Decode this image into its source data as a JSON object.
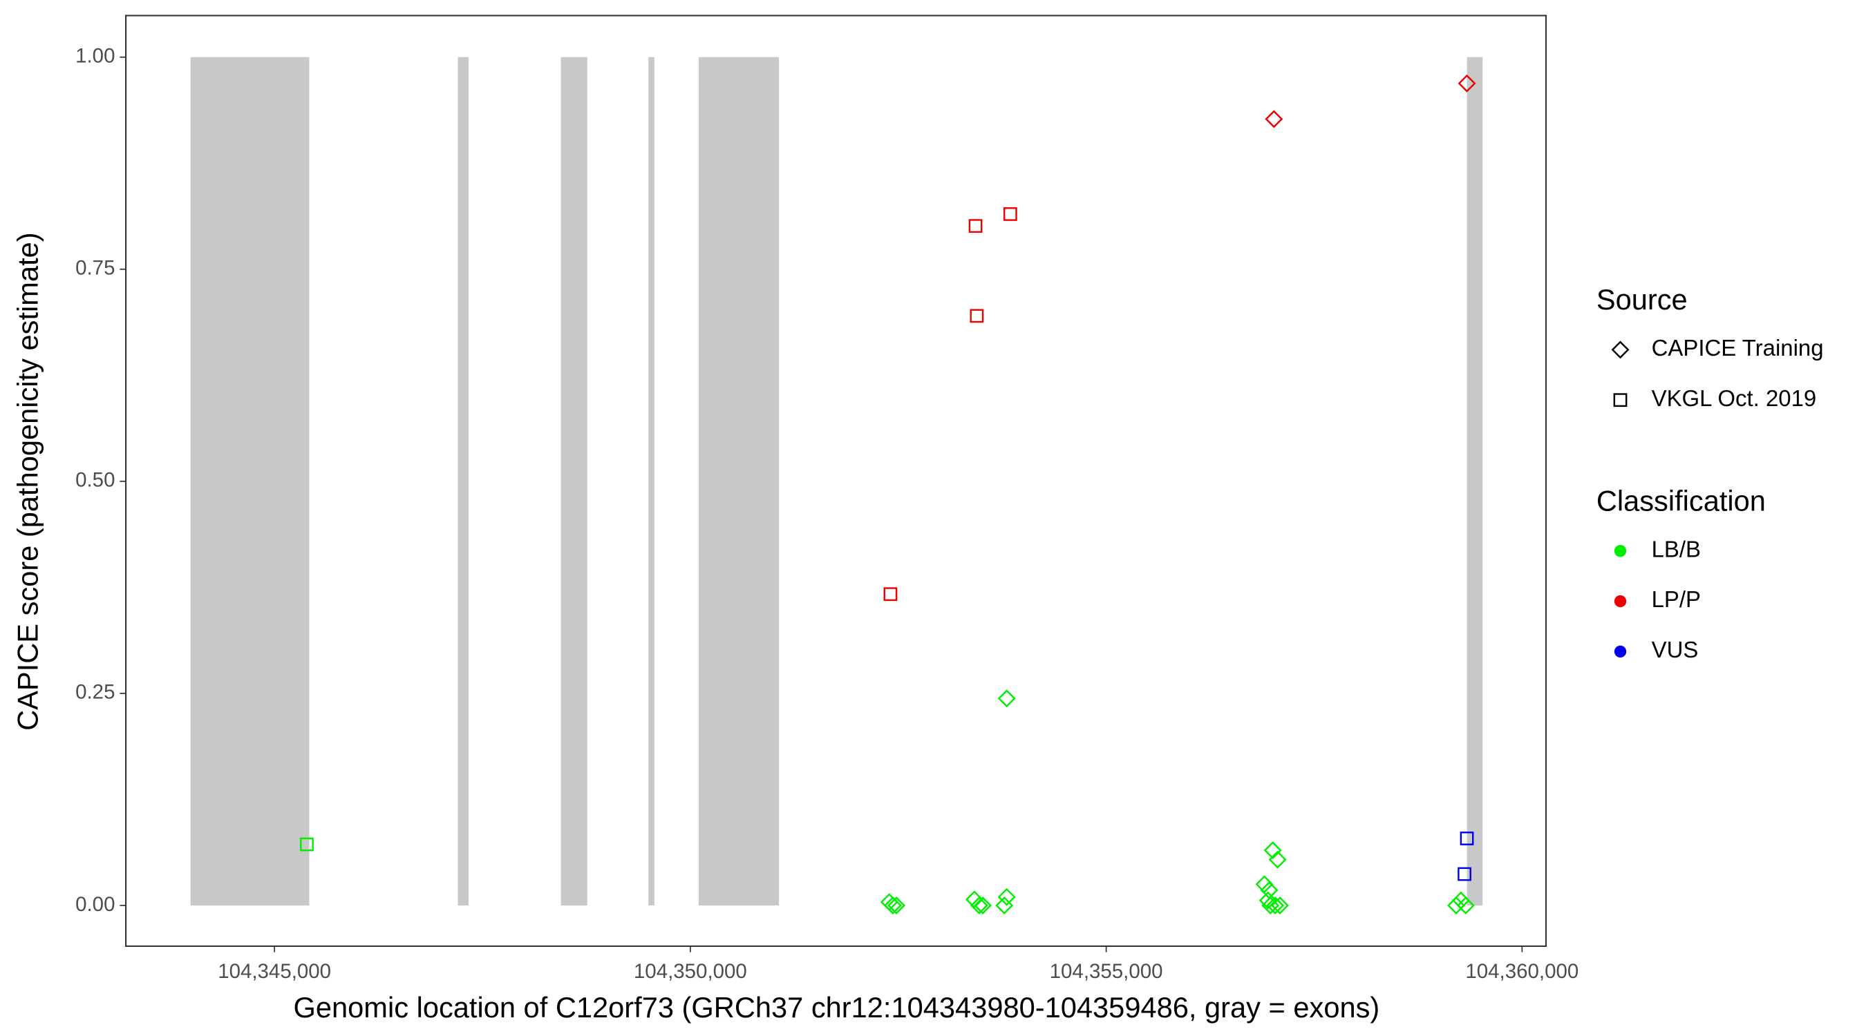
{
  "chart_data": {
    "type": "scatter",
    "x_label": "Genomic location of C12orf73 (GRCh37 chr12:104343980-104359486, gray = exons)",
    "y_label": "CAPICE score (pathogenicity estimate)",
    "xlim": [
      104343213,
      104360288
    ],
    "ylim": [
      -0.048,
      1.049
    ],
    "xticks": [
      {
        "value": 104345000,
        "label": "104,345,000"
      },
      {
        "value": 104350000,
        "label": "104,350,000"
      },
      {
        "value": 104355000,
        "label": "104,355,000"
      },
      {
        "value": 104360000,
        "label": "104,360,000"
      }
    ],
    "yticks": [
      {
        "value": 0,
        "label": "0.00"
      },
      {
        "value": 0.25,
        "label": "0.25"
      },
      {
        "value": 0.5,
        "label": "0.50"
      },
      {
        "value": 0.75,
        "label": "0.75"
      },
      {
        "value": 1,
        "label": "1.00"
      }
    ],
    "exon_color": "#c8c8c8",
    "exons": [
      [
        104343991,
        104345418
      ],
      [
        104347205,
        104347334
      ],
      [
        104348444,
        104348761
      ],
      [
        104349496,
        104349568
      ],
      [
        104350101,
        104351066
      ],
      [
        104359338,
        104359525
      ]
    ],
    "shape_legend": {
      "title": "Source",
      "entries": [
        {
          "name": "CAPICE Training",
          "shape": "diamond"
        },
        {
          "name": "VKGL Oct. 2019",
          "shape": "square"
        }
      ]
    },
    "color_legend": {
      "title": "Classification",
      "entries": [
        {
          "name": "LB/B",
          "color": "#00ee00"
        },
        {
          "name": "LP/P",
          "color": "#ee0000"
        },
        {
          "name": "VUS",
          "color": "#0000ee"
        }
      ]
    },
    "series": [
      {
        "shape": "square",
        "color": "#ee0000",
        "x": [
          104353429,
          104353847,
          104353444,
          104352406
        ],
        "y": [
          0.801,
          0.815,
          0.695,
          0.367
        ]
      },
      {
        "shape": "diamond",
        "color": "#ee0000",
        "x": [
          104357017,
          104359337
        ],
        "y": [
          0.927,
          0.969
        ]
      },
      {
        "shape": "square",
        "color": "#0000ee",
        "x": [
          104359337,
          104359308
        ],
        "y": [
          0.079,
          0.037
        ]
      },
      {
        "shape": "square",
        "color": "#00ee00",
        "x": [
          104345389
        ],
        "y": [
          0.072
        ]
      },
      {
        "shape": "diamond",
        "color": "#00ee00",
        "x": [
          104353804,
          104357003,
          104357061,
          104356902,
          104356960,
          104352392,
          104352435,
          104352478,
          104353415,
          104353473,
          104353516,
          104353804,
          104353775,
          104356945,
          104356974,
          104357032,
          104357089,
          104359208,
          104359265,
          104359323
        ],
        "y": [
          0.244,
          0.065,
          0.054,
          0.025,
          0.018,
          0.004,
          0,
          0,
          0.007,
          0,
          0,
          0.01,
          0,
          0.006,
          0,
          0,
          0,
          0,
          0.006,
          0
        ]
      }
    ]
  }
}
